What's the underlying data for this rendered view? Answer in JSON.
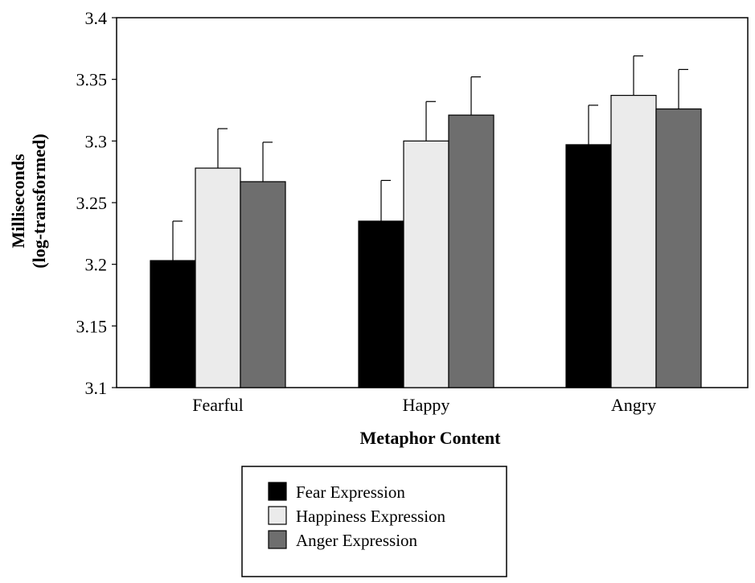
{
  "chart_data": {
    "type": "bar",
    "title": "",
    "xlabel": "Metaphor Content",
    "ylabel": [
      "Milliseconds",
      "(log-transformed)"
    ],
    "categories": [
      "Fearful",
      "Happy",
      "Angry"
    ],
    "ylim": [
      3.1,
      3.4
    ],
    "yticks": [
      3.1,
      3.15,
      3.2,
      3.25,
      3.3,
      3.35,
      3.4
    ],
    "ytick_labels": [
      "3.1",
      "3.15",
      "3.2",
      "3.25",
      "3.3",
      "3.35",
      "3.4"
    ],
    "grid": false,
    "legend_position": "bottom-center",
    "series": [
      {
        "name": "Fear Expression",
        "color": "#000000",
        "values": [
          3.203,
          3.235,
          3.297
        ],
        "errors": [
          0.032,
          0.033,
          0.032
        ]
      },
      {
        "name": "Happiness Expression",
        "color": "#ebebeb",
        "values": [
          3.278,
          3.3,
          3.337
        ],
        "errors": [
          0.032,
          0.032,
          0.032
        ]
      },
      {
        "name": "Anger Expression",
        "color": "#6e6e6e",
        "values": [
          3.267,
          3.321,
          3.326
        ],
        "errors": [
          0.032,
          0.031,
          0.032
        ]
      }
    ]
  }
}
